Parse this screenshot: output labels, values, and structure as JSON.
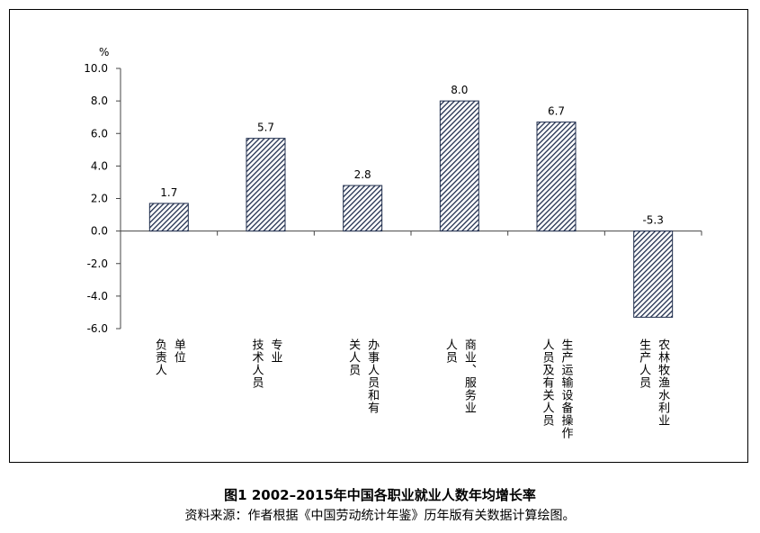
{
  "chart_data": {
    "type": "bar",
    "ylabel": "%",
    "ylim": [
      -6.0,
      10.0
    ],
    "yticks": [
      "10.0",
      "8.0",
      "6.0",
      "4.0",
      "2.0",
      "0.0",
      "-2.0",
      "-4.0",
      "-6.0"
    ],
    "categories": [
      [
        "单位",
        "负责人"
      ],
      [
        "专业",
        "技术人员"
      ],
      [
        "办事人员和有",
        "关人员"
      ],
      [
        "商业、服务业",
        "人员"
      ],
      [
        "生产运输设备操作",
        "人员及有关人员"
      ],
      [
        "农林牧渔水利业",
        "生产人员"
      ]
    ],
    "values": [
      1.7,
      5.7,
      2.8,
      8.0,
      6.7,
      -5.3
    ],
    "value_labels": [
      "1.7",
      "5.7",
      "2.8",
      "8.0",
      "6.7",
      "-5.3"
    ],
    "bar_fill": "diagonal-hatch",
    "bar_color": "#1f2d4d",
    "grid": false
  },
  "caption": {
    "title": "图1  2002–2015年中国各职业就业人数年均增长率",
    "source": "资料来源：作者根据《中国劳动统计年鉴》历年版有关数据计算绘图。"
  }
}
